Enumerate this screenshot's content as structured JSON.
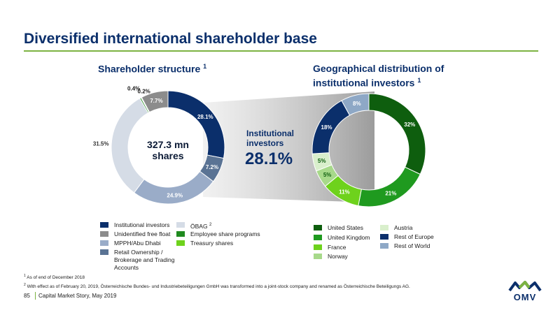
{
  "title": "Diversified international shareholder base",
  "subtitle_left": "Shareholder structure",
  "subtitle_left_note": "1",
  "subtitle_right": "Geographical distribution of institutional investors",
  "subtitle_right_note": "1",
  "center_text": "327.3 mn\nshares",
  "center_line1": "327.3 mn",
  "center_line2": "shares",
  "callout_label": "Institutional investors",
  "callout_line1": "Institutional",
  "callout_line2": "investors",
  "callout_value": "28.1%",
  "chart_data": [
    {
      "type": "pie",
      "title": "Shareholder structure",
      "categories": [
        "Institutional investors",
        "Retail Ownership / Brokerage and Trading Accounts",
        "MPPH/Abu Dhabi",
        "ÖBAG",
        "Employee share programs",
        "Treasury shares",
        "Unidentified free float"
      ],
      "values": [
        28.1,
        7.2,
        24.9,
        31.5,
        0.4,
        0.2,
        7.7
      ],
      "labels": [
        "28.1%",
        "7.2%",
        "24.9%",
        "31.5%",
        "0.4%",
        "0.2%",
        "7.7%"
      ],
      "colors": [
        "#0b2f6b",
        "#5a7394",
        "#9aacc8",
        "#d5dce6",
        "#1f8a1f",
        "#6ed21c",
        "#8c8c8c"
      ]
    },
    {
      "type": "pie",
      "title": "Geographical distribution of institutional investors",
      "categories": [
        "United States",
        "United Kingdom",
        "France",
        "Norway",
        "Austria",
        "Rest of Europe",
        "Rest of World"
      ],
      "values": [
        32,
        21,
        11,
        5,
        5,
        18,
        8
      ],
      "labels": [
        "32%",
        "21%",
        "11%",
        "5%",
        "5%",
        "18%",
        "8%"
      ],
      "colors": [
        "#0e5e0e",
        "#1f9a1f",
        "#6ed21c",
        "#a7d98a",
        "#d9efcc",
        "#0b2f6b",
        "#8ea8c6"
      ]
    }
  ],
  "legend_left": [
    {
      "label": "Institutional investors",
      "color": "#0b2f6b"
    },
    {
      "label": "Unidentified free float",
      "color": "#8c8c8c"
    },
    {
      "label": "MPPH/Abu Dhabi",
      "color": "#9aacc8"
    },
    {
      "label": "Retail Ownership / Brokerage and Trading Accounts",
      "line1": "Retail Ownership /",
      "line2": "Brokerage and Trading",
      "line3": "Accounts",
      "color": "#5a7394"
    },
    {
      "label": "ÖBAG",
      "note": "2",
      "color": "#d5dce6"
    },
    {
      "label": "Employee share programs",
      "color": "#1f8a1f"
    },
    {
      "label": "Treasury shares",
      "color": "#6ed21c"
    }
  ],
  "legend_right": [
    {
      "label": "United States",
      "color": "#0e5e0e"
    },
    {
      "label": "United Kingdom",
      "color": "#1f9a1f"
    },
    {
      "label": "France",
      "color": "#6ed21c"
    },
    {
      "label": "Norway",
      "color": "#a7d98a"
    },
    {
      "label": "Austria",
      "color": "#d9efcc"
    },
    {
      "label": "Rest of Europe",
      "color": "#0b2f6b"
    },
    {
      "label": "Rest of World",
      "color": "#8ea8c6"
    }
  ],
  "footnote1_mark": "1",
  "footnote1": "As of  end of December 2018",
  "footnote2_mark": "2",
  "footnote2": "With effect as of February 20, 2019, Österreichische Bundes- und Industriebeteiligungen GmbH was transformed into a joint-stock company and renamed as Österreichische Beteiligungs AG.",
  "page_number": "85",
  "page_label": "Capital Market Story, May 2019",
  "logo_text": "OMV"
}
